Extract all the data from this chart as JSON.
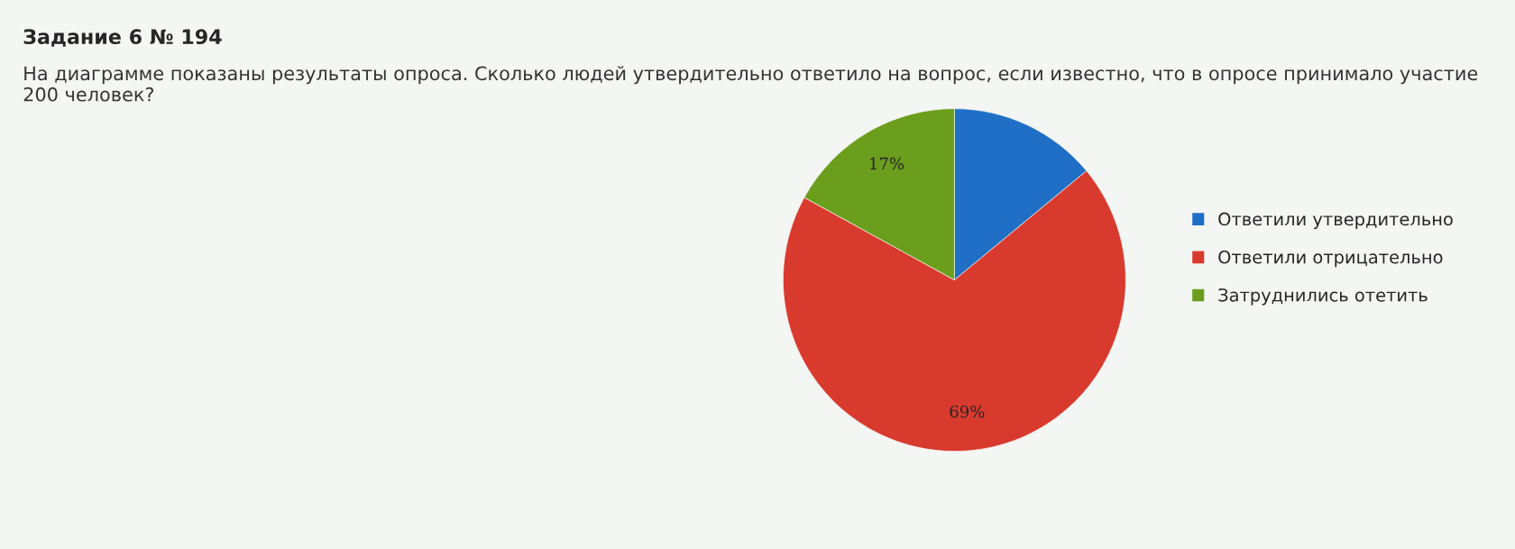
{
  "chart_data": {
    "type": "pie",
    "title": "Задание 6 № 194",
    "subtitle": "На диаграмме показаны результаты опроса. Сколько людей утвердительно ответило на вопрос, если известно, что в опросе принимало участие 200 человек?",
    "categories": [
      "Ответили утвердительно",
      "Ответили отрицательно",
      "Затруднились отетить"
    ],
    "values": [
      14,
      69,
      17
    ],
    "colors": [
      "#1f6fc6",
      "#d93a2e",
      "#6b9e1c"
    ],
    "value_labels": [
      null,
      "69%",
      "17%"
    ],
    "legend": "right"
  }
}
